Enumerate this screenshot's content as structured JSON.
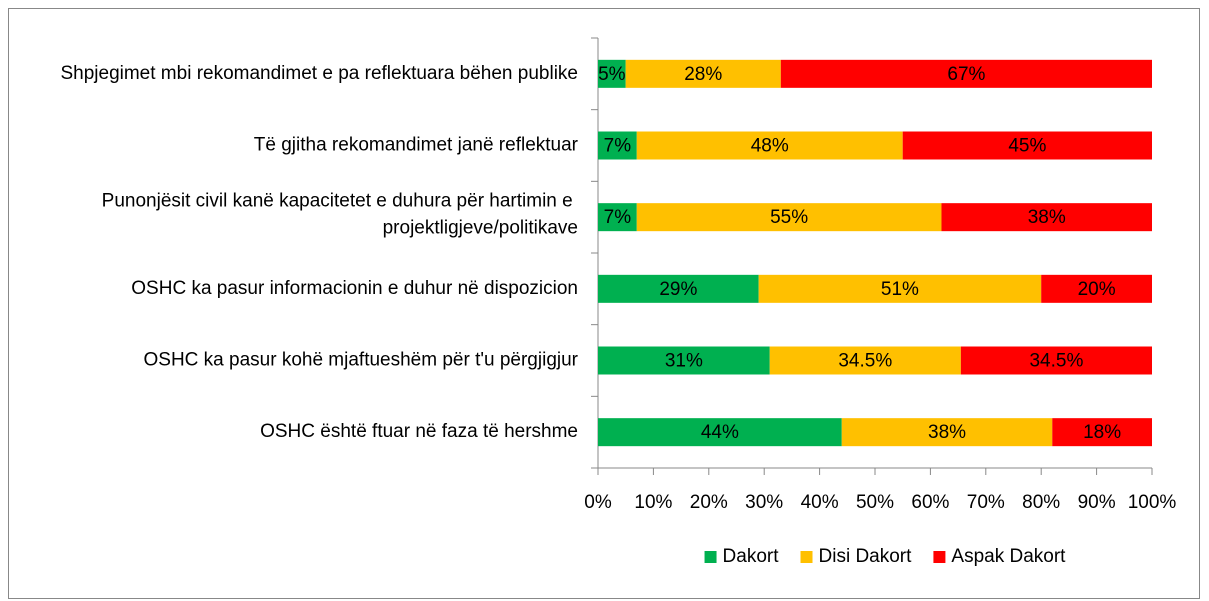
{
  "chart_data": {
    "type": "stacked_barh",
    "categories": [
      "Shpjegimet mbi rekomandimet e pa reflektuara bëhen publike",
      "Të gjitha rekomandimet janë reflektuar",
      "Punonjësit civil kanë kapacitetet e duhura për hartimin e projektligjeve/politikave",
      "OSHC ka pasur informacionin e duhur në dispozicion",
      "OSHC ka pasur kohë mjaftueshëm për t'u përgjigjur",
      "OSHC është ftuar në faza të hershme"
    ],
    "series": [
      {
        "name": "Dakort",
        "color": "#00b050",
        "values": [
          5,
          7,
          7,
          29,
          31,
          44
        ],
        "value_labels": [
          "5%",
          "7%",
          "7%",
          "29%",
          "31%",
          "44%"
        ]
      },
      {
        "name": "Disi Dakort",
        "color": "#ffc000",
        "values": [
          28,
          48,
          55,
          51,
          34.5,
          38
        ],
        "value_labels": [
          "28%",
          "48%",
          "55%",
          "51%",
          "34.5%",
          "38%"
        ]
      },
      {
        "name": "Aspak Dakort",
        "color": "#ff0000",
        "values": [
          67,
          45,
          38,
          20,
          34.5,
          18
        ],
        "value_labels": [
          "67%",
          "45%",
          "38%",
          "20%",
          "34.5%",
          "18%"
        ]
      }
    ],
    "xlim": [
      0,
      100
    ],
    "xticks": [
      {
        "value": 0,
        "label": "0%"
      },
      {
        "value": 10,
        "label": "10%"
      },
      {
        "value": 20,
        "label": "20%"
      },
      {
        "value": 30,
        "label": "30%"
      },
      {
        "value": 40,
        "label": "40%"
      },
      {
        "value": 50,
        "label": "50%"
      },
      {
        "value": 60,
        "label": "60%"
      },
      {
        "value": 70,
        "label": "70%"
      },
      {
        "value": 80,
        "label": "80%"
      },
      {
        "value": 90,
        "label": "90%"
      },
      {
        "value": 100,
        "label": "100%"
      }
    ],
    "legend": "bottom"
  }
}
